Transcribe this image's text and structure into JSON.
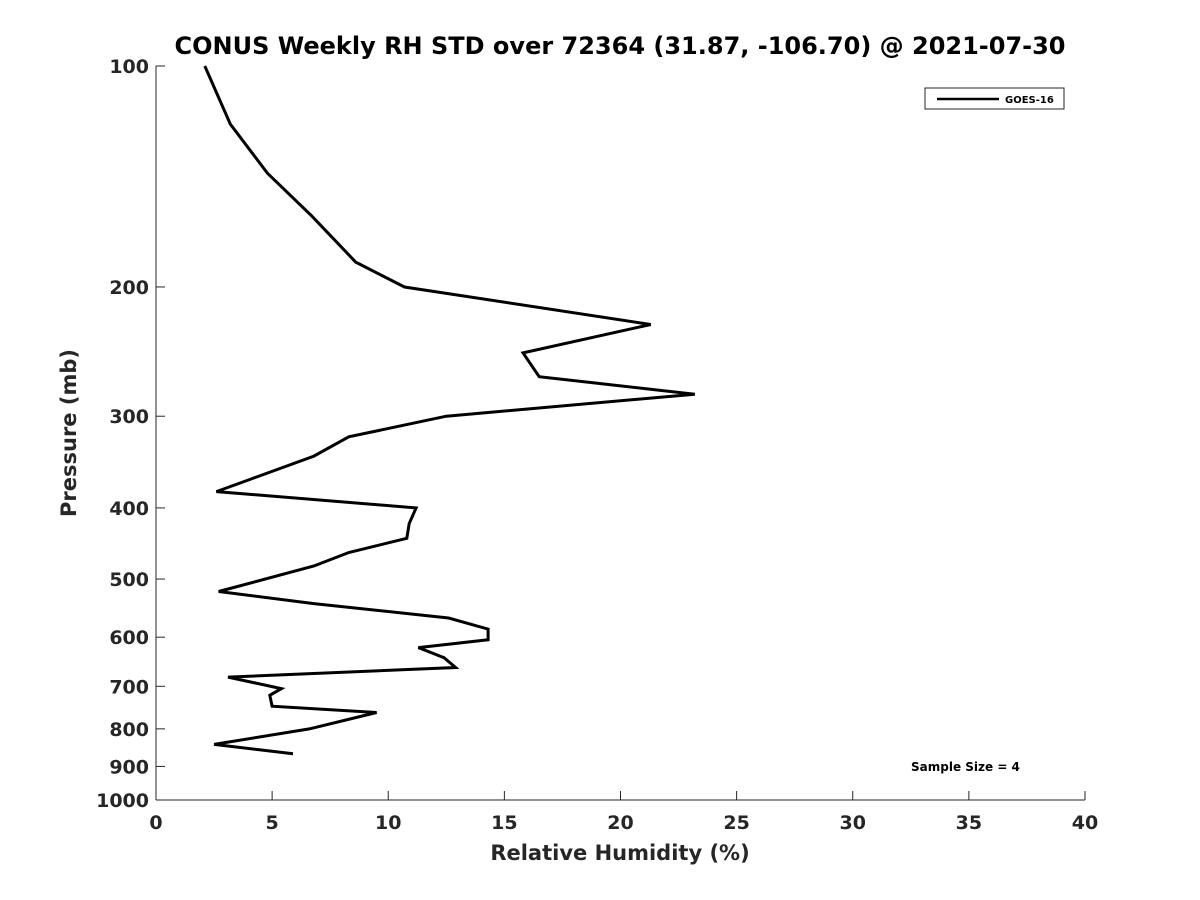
{
  "chart_data": {
    "type": "line",
    "title": "CONUS Weekly RH STD over 72364 (31.87, -106.70) @ 2021-07-30",
    "xlabel": "Relative Humidity (%)",
    "ylabel": "Pressure (mb)",
    "xlim": [
      0,
      40
    ],
    "ylim": [
      100,
      1000
    ],
    "y_scale": "log",
    "y_reversed": true,
    "x_ticks": [
      "0",
      "5",
      "10",
      "15",
      "20",
      "25",
      "30",
      "35",
      "40"
    ],
    "y_ticks": [
      "100",
      "200",
      "300",
      "400",
      "500",
      "600",
      "700",
      "800",
      "900",
      "1000"
    ],
    "grid": false,
    "legend_position": "top-right",
    "series": [
      {
        "name": "GOES-16",
        "color": "#000000",
        "points": [
          {
            "x": 2.1,
            "y": 100
          },
          {
            "x": 3.2,
            "y": 120
          },
          {
            "x": 4.8,
            "y": 140
          },
          {
            "x": 6.7,
            "y": 160
          },
          {
            "x": 8.6,
            "y": 185
          },
          {
            "x": 10.7,
            "y": 200
          },
          {
            "x": 21.3,
            "y": 225
          },
          {
            "x": 15.8,
            "y": 246
          },
          {
            "x": 16.5,
            "y": 265
          },
          {
            "x": 23.2,
            "y": 280
          },
          {
            "x": 12.5,
            "y": 300
          },
          {
            "x": 8.3,
            "y": 320
          },
          {
            "x": 6.8,
            "y": 340
          },
          {
            "x": 2.6,
            "y": 380
          },
          {
            "x": 11.2,
            "y": 400
          },
          {
            "x": 10.9,
            "y": 420
          },
          {
            "x": 10.8,
            "y": 440
          },
          {
            "x": 8.3,
            "y": 460
          },
          {
            "x": 6.8,
            "y": 480
          },
          {
            "x": 2.7,
            "y": 520
          },
          {
            "x": 6.8,
            "y": 540
          },
          {
            "x": 12.6,
            "y": 565
          },
          {
            "x": 14.3,
            "y": 585
          },
          {
            "x": 14.3,
            "y": 605
          },
          {
            "x": 11.3,
            "y": 620
          },
          {
            "x": 12.4,
            "y": 640
          },
          {
            "x": 12.9,
            "y": 660
          },
          {
            "x": 3.1,
            "y": 680
          },
          {
            "x": 5.4,
            "y": 705
          },
          {
            "x": 4.9,
            "y": 720
          },
          {
            "x": 5.0,
            "y": 745
          },
          {
            "x": 9.5,
            "y": 760
          },
          {
            "x": 6.6,
            "y": 800
          },
          {
            "x": 2.5,
            "y": 840
          },
          {
            "x": 5.9,
            "y": 865
          }
        ]
      }
    ],
    "annotations": [
      "Sample Size = 4"
    ]
  }
}
